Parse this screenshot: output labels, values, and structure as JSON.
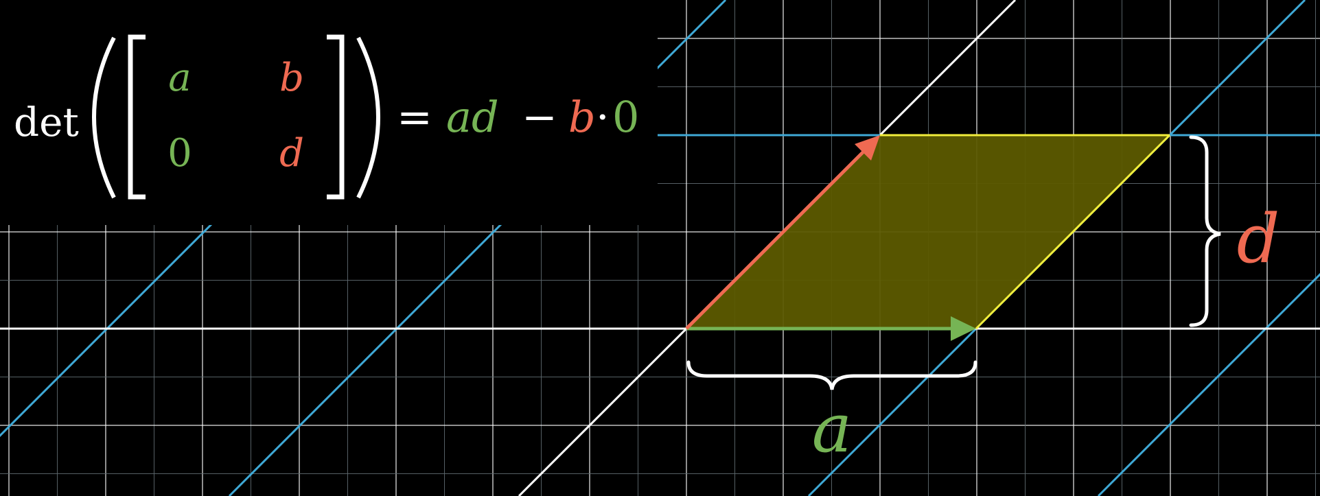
{
  "formula": {
    "det_label": "det",
    "matrix": {
      "a11": "a",
      "a12": "b",
      "a21": "0",
      "a22": "d"
    },
    "equals": "=",
    "rhs": {
      "term1": "ad",
      "minus": "−",
      "term2_b": "b",
      "dot": "·",
      "term2_zero": "0"
    }
  },
  "labels": {
    "width_label": "a",
    "height_label": "d"
  },
  "colors": {
    "background": "#000000",
    "grid_major": "#ffffff",
    "grid_minor": "#5f6a70",
    "transformed_lines": "#3fa9d6",
    "axis": "#ffffff",
    "vector_i": "#76b455",
    "vector_j": "#ef6a52",
    "parallelogram_fill": "#5c5a00",
    "parallelogram_edge": "#f2ee3c",
    "brace": "#ffffff"
  }
}
